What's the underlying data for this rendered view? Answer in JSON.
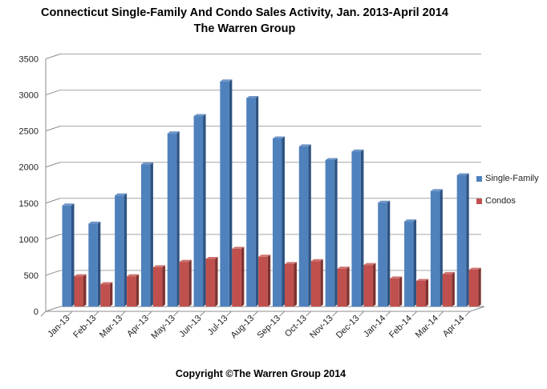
{
  "title": {
    "line1": "Connecticut Single-Family And Condo Sales Activity, Jan. 2013-April 2014",
    "line2": "The Warren Group"
  },
  "footer": {
    "copyright": "Copyright ©The Warren Group 2014"
  },
  "colors": {
    "single_family_face": "#4F81BD",
    "single_family_side": "#2E5381",
    "single_family_top": "#6E94C6",
    "condos_face": "#C0504D",
    "condos_side": "#7E3331",
    "condos_top": "#CD7370",
    "gridline": "#A6A6A6",
    "axis": "#8C8C8C",
    "tick_text": "#1f1f1f"
  },
  "chart_data": {
    "type": "bar",
    "style": "3d-clustered-column",
    "title": "Connecticut Single-Family And Condo Sales Activity, Jan. 2013-April 2014 — The Warren Group",
    "xlabel": "",
    "ylabel": "",
    "ylim": [
      0,
      3500
    ],
    "ytick_interval": 500,
    "ytick_labels": [
      "0",
      "500",
      "1000",
      "1500",
      "2000",
      "2500",
      "3000",
      "3500"
    ],
    "grid": true,
    "legend_position": "right",
    "categories": [
      "Jan-13",
      "Feb-13",
      "Mar-13",
      "Apr-13",
      "May-13",
      "Jun-13",
      "Jul-13",
      "Aug-13",
      "Sep-13",
      "Oct-13",
      "Nov-13",
      "Dec-13",
      "Jan-14",
      "Feb-14",
      "Mar-14",
      "Apr-14"
    ],
    "series": [
      {
        "name": "Single-Family",
        "color": "#4F81BD",
        "values": [
          1400,
          1150,
          1540,
          1970,
          2400,
          2640,
          3120,
          2890,
          2330,
          2220,
          2030,
          2150,
          1440,
          1180,
          1600,
          1820
        ]
      },
      {
        "name": "Condos",
        "color": "#C0504D",
        "values": [
          420,
          310,
          420,
          545,
          620,
          660,
          800,
          690,
          590,
          630,
          525,
          575,
          390,
          355,
          450,
          510
        ]
      }
    ]
  }
}
